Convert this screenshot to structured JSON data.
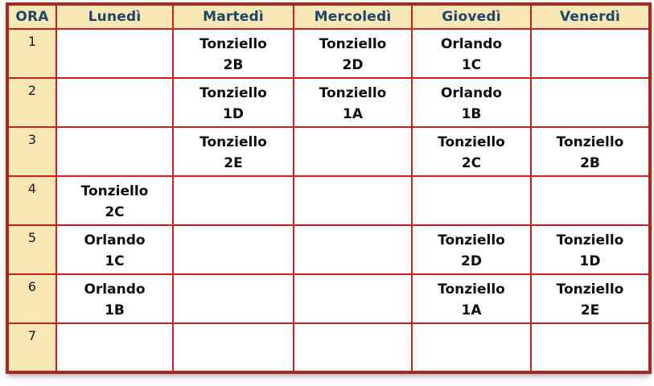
{
  "colors": {
    "grid_red": "#cb1f1f",
    "outer_border_red": "#a8281e",
    "header_background": "#f6e7b4",
    "header_text_blue": "#1f4568",
    "cell_text": "#0d0d0d"
  },
  "table": {
    "headers": [
      "ORA",
      "Lunedì",
      "Martedì",
      "Mercoledì",
      "Giovedì",
      "Venerdì"
    ],
    "rows": [
      {
        "ora": "1",
        "cells": [
          {
            "teacher": "",
            "class": ""
          },
          {
            "teacher": "Tonziello",
            "class": "2B"
          },
          {
            "teacher": "Tonziello",
            "class": "2D"
          },
          {
            "teacher": "Orlando",
            "class": "1C"
          },
          {
            "teacher": "",
            "class": ""
          }
        ]
      },
      {
        "ora": "2",
        "cells": [
          {
            "teacher": "",
            "class": ""
          },
          {
            "teacher": "Tonziello",
            "class": "1D"
          },
          {
            "teacher": "Tonziello",
            "class": "1A"
          },
          {
            "teacher": "Orlando",
            "class": "1B"
          },
          {
            "teacher": "",
            "class": ""
          }
        ]
      },
      {
        "ora": "3",
        "cells": [
          {
            "teacher": "",
            "class": ""
          },
          {
            "teacher": "Tonziello",
            "class": "2E"
          },
          {
            "teacher": "",
            "class": ""
          },
          {
            "teacher": "Tonziello",
            "class": "2C"
          },
          {
            "teacher": "Tonziello",
            "class": "2B"
          }
        ]
      },
      {
        "ora": "4",
        "cells": [
          {
            "teacher": "Tonziello",
            "class": "2C"
          },
          {
            "teacher": "",
            "class": ""
          },
          {
            "teacher": "",
            "class": ""
          },
          {
            "teacher": "",
            "class": ""
          },
          {
            "teacher": "",
            "class": ""
          }
        ]
      },
      {
        "ora": "5",
        "cells": [
          {
            "teacher": "Orlando",
            "class": "1C"
          },
          {
            "teacher": "",
            "class": ""
          },
          {
            "teacher": "",
            "class": ""
          },
          {
            "teacher": "Tonziello",
            "class": "2D"
          },
          {
            "teacher": "Tonziello",
            "class": "1D"
          }
        ]
      },
      {
        "ora": "6",
        "cells": [
          {
            "teacher": "Orlando",
            "class": "1B"
          },
          {
            "teacher": "",
            "class": ""
          },
          {
            "teacher": "",
            "class": ""
          },
          {
            "teacher": "Tonziello",
            "class": "1A"
          },
          {
            "teacher": "Tonziello",
            "class": "2E"
          }
        ]
      },
      {
        "ora": "7",
        "cells": [
          {
            "teacher": "",
            "class": ""
          },
          {
            "teacher": "",
            "class": ""
          },
          {
            "teacher": "",
            "class": ""
          },
          {
            "teacher": "",
            "class": ""
          },
          {
            "teacher": "",
            "class": ""
          }
        ]
      }
    ]
  }
}
